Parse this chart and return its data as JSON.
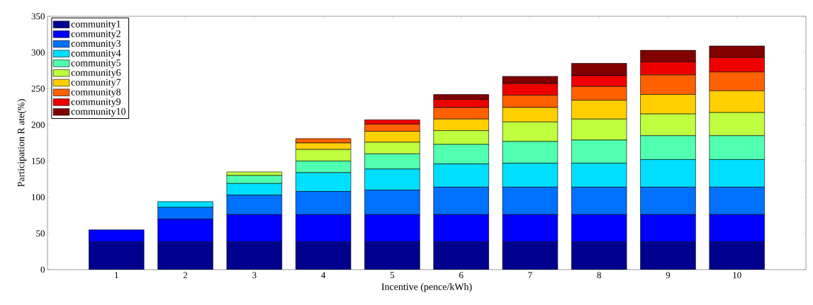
{
  "chart_data": {
    "type": "bar",
    "stacked": true,
    "xlabel": "Incentive (pence/kWh)",
    "ylabel": "Participation R ate(%)",
    "categories": [
      "1",
      "2",
      "3",
      "4",
      "5",
      "6",
      "7",
      "8",
      "9",
      "10"
    ],
    "ylim": [
      0,
      350
    ],
    "yticks": [
      0,
      50,
      100,
      150,
      200,
      250,
      300,
      350
    ],
    "grid": false,
    "legend": "top left",
    "series": [
      {
        "name": "community1",
        "color": "#00008f",
        "values": [
          38,
          38,
          38,
          38,
          38,
          38,
          38,
          38,
          38,
          38
        ]
      },
      {
        "name": "community2",
        "color": "#0000ff",
        "values": [
          17,
          32,
          38,
          38,
          38,
          38,
          38,
          38,
          38,
          38
        ]
      },
      {
        "name": "community3",
        "color": "#0070ff",
        "values": [
          null,
          16,
          27,
          32,
          34,
          38,
          38,
          38,
          38,
          38
        ]
      },
      {
        "name": "community4",
        "color": "#00dfff",
        "values": [
          null,
          8,
          16,
          26,
          29,
          32,
          33,
          33,
          38,
          38
        ]
      },
      {
        "name": "community5",
        "color": "#50ffaf",
        "values": [
          null,
          null,
          11,
          16,
          21,
          27,
          30,
          32,
          33,
          33
        ]
      },
      {
        "name": "community6",
        "color": "#bfff40",
        "values": [
          null,
          null,
          5,
          16,
          16,
          19,
          27,
          29,
          30,
          32
        ]
      },
      {
        "name": "community7",
        "color": "#ffcf00",
        "values": [
          null,
          null,
          null,
          9,
          15,
          16,
          20,
          26,
          27,
          30
        ]
      },
      {
        "name": "community8",
        "color": "#ff6000",
        "values": [
          null,
          null,
          null,
          6,
          10,
          16,
          17,
          19,
          27,
          26
        ]
      },
      {
        "name": "community9",
        "color": "#ef0000",
        "values": [
          null,
          null,
          null,
          null,
          6,
          11,
          16,
          15,
          18,
          20
        ]
      },
      {
        "name": "community10",
        "color": "#800000",
        "values": [
          null,
          null,
          null,
          null,
          null,
          7,
          10,
          17,
          16,
          16
        ]
      }
    ]
  }
}
